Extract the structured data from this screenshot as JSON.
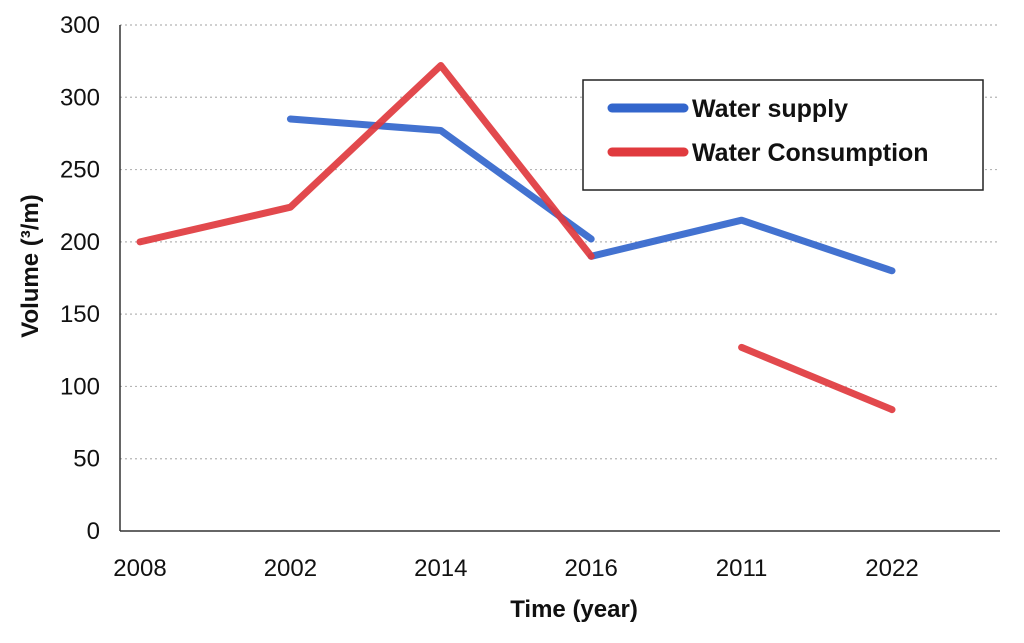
{
  "chart_data": {
    "type": "line",
    "title": "",
    "xlabel": "Time (year)",
    "ylabel": "Volume (³/m)",
    "categories": [
      "2008",
      "2002",
      "2014",
      "2016",
      "2011",
      "2022"
    ],
    "yticks": [
      "0",
      "50",
      "100",
      "150",
      "200",
      "250",
      "300",
      "300"
    ],
    "grid": true,
    "legend_position": "top-right",
    "series": [
      {
        "name": "Water supply",
        "color": "#3366cc",
        "values": [
          null,
          285,
          277,
          202,
          215,
          180
        ],
        "segments": [
          [
            1,
            3
          ],
          [
            3,
            5
          ]
        ],
        "extra_points": [
          {
            "x": 3,
            "y": 190
          }
        ]
      },
      {
        "name": "Water Consumption",
        "color": "#e03a3e",
        "values": [
          200,
          224,
          322,
          190,
          127,
          84
        ],
        "segments": [
          [
            0,
            3
          ],
          [
            4,
            5
          ]
        ]
      }
    ]
  }
}
